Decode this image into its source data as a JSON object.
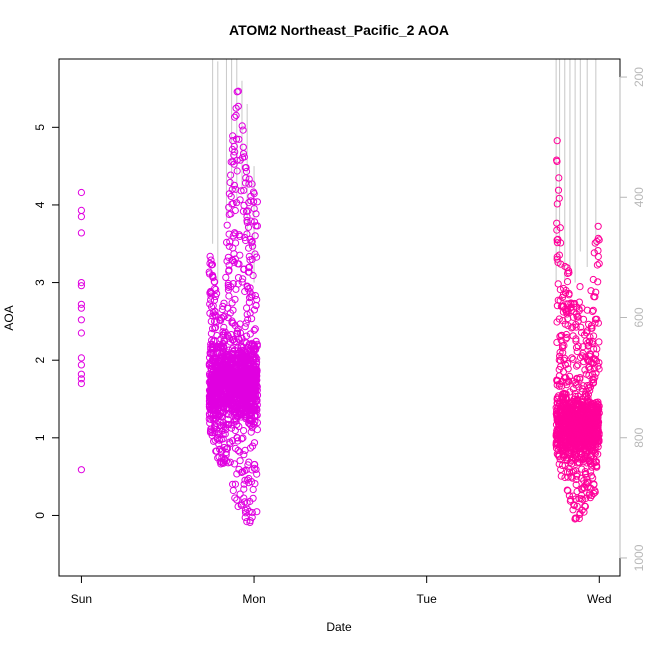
{
  "chart_data": {
    "type": "scatter",
    "title": "ATOM2 Northeast_Pacific_2 AOA",
    "xlabel": "Date",
    "ylabel": "AOA",
    "x_ticks": [
      {
        "label": "Sun",
        "value": 0
      },
      {
        "label": "Mon",
        "value": 1
      },
      {
        "label": "Tue",
        "value": 2
      },
      {
        "label": "Wed",
        "value": 3
      }
    ],
    "xlim": [
      -0.13,
      3.12
    ],
    "ylim": [
      -0.78,
      5.88
    ],
    "y_ticks": [
      0,
      1,
      2,
      3,
      4,
      5
    ],
    "right_axis": {
      "label": "",
      "inverted": true,
      "ticks": [
        200,
        400,
        600,
        800,
        1000
      ],
      "lim": [
        1030,
        170
      ],
      "color": "#b8b8b8"
    },
    "grid": false,
    "legend": "none",
    "colors": {
      "early": "#e000e0",
      "late": "#ff0099",
      "altitude_line": "#c8c8c8"
    },
    "series": [
      {
        "values": [
          {
            "x": 0.0,
            "y": 4.16
          },
          {
            "x": 0.0,
            "y": 3.93
          },
          {
            "x": 0.0,
            "y": 3.85
          },
          {
            "x": 0.0,
            "y": 3.64
          },
          {
            "x": 0.0,
            "y": 3.0
          },
          {
            "x": 0.0,
            "y": 2.96
          },
          {
            "x": 0.0,
            "y": 2.72
          },
          {
            "x": 0.0,
            "y": 2.67
          },
          {
            "x": 0.0,
            "y": 2.52
          },
          {
            "x": 0.0,
            "y": 2.35
          },
          {
            "x": 0.0,
            "y": 2.03
          },
          {
            "x": 0.0,
            "y": 1.94
          },
          {
            "x": 0.0,
            "y": 1.82
          },
          {
            "x": 0.0,
            "y": 1.76
          },
          {
            "x": 0.0,
            "y": 1.7
          },
          {
            "x": 0.0,
            "y": 0.59
          }
        ]
      },
      {
        "band": true,
        "x_range": [
          0.74,
          1.02
        ],
        "profile": [
          {
            "x": 0.74,
            "lo": 1.0,
            "hi": 3.55
          },
          {
            "x": 0.78,
            "lo": 0.75,
            "hi": 2.9
          },
          {
            "x": 0.82,
            "lo": 0.6,
            "hi": 2.7
          },
          {
            "x": 0.86,
            "lo": 0.5,
            "hi": 4.4
          },
          {
            "x": 0.9,
            "lo": 0.05,
            "hi": 5.68
          },
          {
            "x": 0.94,
            "lo": 0.0,
            "hi": 4.9
          },
          {
            "x": 0.98,
            "lo": -0.55,
            "hi": 4.4
          },
          {
            "x": 1.0,
            "lo": 0.5,
            "hi": 4.3
          },
          {
            "x": 1.02,
            "lo": -0.42,
            "hi": 4.35
          }
        ],
        "core": [
          1.0,
          2.4
        ]
      },
      {
        "band": true,
        "x_range": [
          2.75,
          3.0
        ],
        "profile": [
          {
            "x": 2.75,
            "lo": 0.8,
            "hi": 5.5
          },
          {
            "x": 2.78,
            "lo": 0.5,
            "hi": 3.3
          },
          {
            "x": 2.82,
            "lo": 0.3,
            "hi": 3.2
          },
          {
            "x": 2.86,
            "lo": -0.1,
            "hi": 2.9
          },
          {
            "x": 2.9,
            "lo": -0.12,
            "hi": 3.0
          },
          {
            "x": 2.94,
            "lo": 0.2,
            "hi": 2.6
          },
          {
            "x": 2.98,
            "lo": 0.3,
            "hi": 3.7
          },
          {
            "x": 3.0,
            "lo": 0.8,
            "hi": 3.75
          }
        ],
        "core": [
          0.6,
          1.7
        ]
      }
    ],
    "altitude_lines": [
      {
        "x": 0.76,
        "top": 5.9,
        "bottom": 3.5
      },
      {
        "x": 0.79,
        "top": 5.85,
        "bottom": 3.0
      },
      {
        "x": 0.84,
        "top": 5.9,
        "bottom": 3.8
      },
      {
        "x": 0.87,
        "top": 5.9,
        "bottom": 4.1
      },
      {
        "x": 0.9,
        "top": 5.9,
        "bottom": 4.0
      },
      {
        "x": 0.93,
        "top": 5.6,
        "bottom": 4.2
      },
      {
        "x": 0.96,
        "top": 5.3,
        "bottom": 3.6
      },
      {
        "x": 1.0,
        "top": 4.5,
        "bottom": 3.0
      },
      {
        "x": 2.75,
        "top": 5.9,
        "bottom": 3.0
      },
      {
        "x": 2.77,
        "top": 5.9,
        "bottom": 3.2
      },
      {
        "x": 2.8,
        "top": 5.9,
        "bottom": 3.0
      },
      {
        "x": 2.83,
        "top": 5.9,
        "bottom": 3.2
      },
      {
        "x": 2.86,
        "top": 5.9,
        "bottom": 3.0
      },
      {
        "x": 2.89,
        "top": 5.9,
        "bottom": 3.4
      },
      {
        "x": 2.93,
        "top": 5.9,
        "bottom": 3.2
      },
      {
        "x": 2.98,
        "top": 5.9,
        "bottom": 3.3
      }
    ]
  }
}
